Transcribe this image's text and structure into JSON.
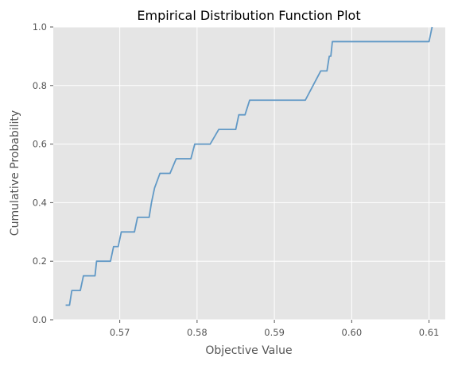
{
  "chart_data": {
    "type": "line",
    "title": "Empirical Distribution Function Plot",
    "xlabel": "Objective Value",
    "ylabel": "Cumulative Probability",
    "xlim": [
      0.5614,
      0.6121
    ],
    "ylim": [
      0.0,
      1.0
    ],
    "xticks": [
      0.57,
      0.58,
      0.59,
      0.6,
      0.61
    ],
    "xtick_labels": [
      "0.57",
      "0.58",
      "0.59",
      "0.60",
      "0.61"
    ],
    "yticks": [
      0.0,
      0.2,
      0.4,
      0.6,
      0.8,
      1.0
    ],
    "ytick_labels": [
      "0.0",
      "0.2",
      "0.4",
      "0.6",
      "0.8",
      "1.0"
    ],
    "grid": true,
    "background_color": "#e5e5e5",
    "grid_color": "#ffffff",
    "line_color": "#6199c6",
    "series": [
      {
        "values": [
          [
            0.563,
            0.05
          ],
          [
            0.5635,
            0.05
          ],
          [
            0.5638,
            0.1
          ],
          [
            0.5649,
            0.1
          ],
          [
            0.5653,
            0.15
          ],
          [
            0.5668,
            0.15
          ],
          [
            0.567,
            0.2
          ],
          [
            0.5688,
            0.2
          ],
          [
            0.5692,
            0.25
          ],
          [
            0.5698,
            0.25
          ],
          [
            0.5702,
            0.3
          ],
          [
            0.5719,
            0.3
          ],
          [
            0.5723,
            0.35
          ],
          [
            0.5738,
            0.35
          ],
          [
            0.5741,
            0.4
          ],
          [
            0.5745,
            0.45
          ],
          [
            0.5752,
            0.5
          ],
          [
            0.5765,
            0.5
          ],
          [
            0.5773,
            0.55
          ],
          [
            0.5792,
            0.55
          ],
          [
            0.5797,
            0.6
          ],
          [
            0.5817,
            0.6
          ],
          [
            0.5828,
            0.65
          ],
          [
            0.585,
            0.65
          ],
          [
            0.5854,
            0.7
          ],
          [
            0.5862,
            0.7
          ],
          [
            0.5868,
            0.75
          ],
          [
            0.594,
            0.75
          ],
          [
            0.596,
            0.85
          ],
          [
            0.5968,
            0.85
          ],
          [
            0.5971,
            0.9
          ],
          [
            0.5973,
            0.9
          ],
          [
            0.5975,
            0.95
          ],
          [
            0.61,
            0.95
          ],
          [
            0.6104,
            1.0
          ]
        ]
      }
    ]
  }
}
